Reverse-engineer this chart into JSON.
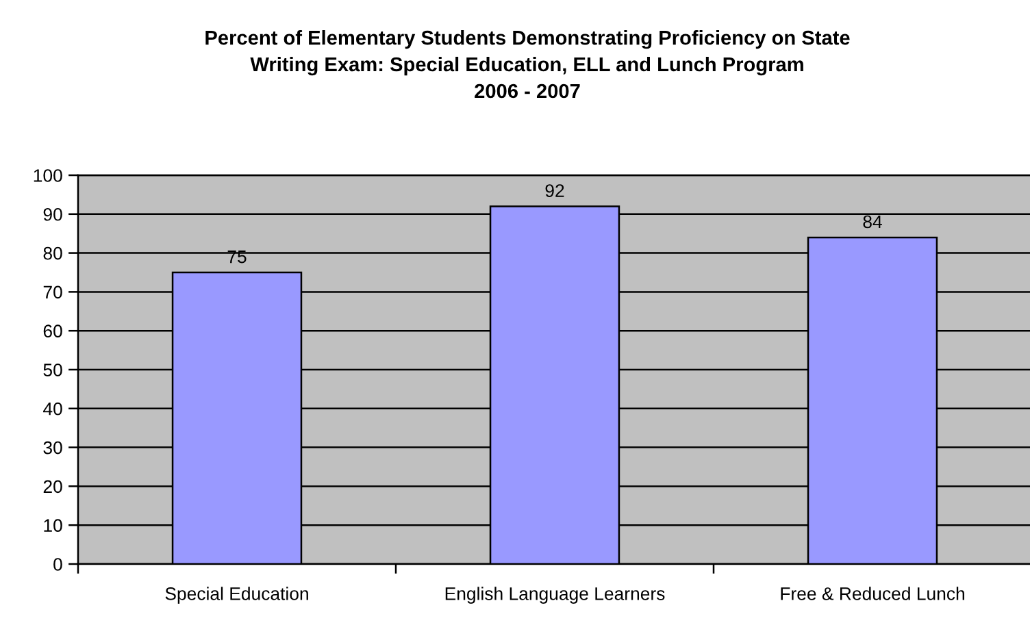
{
  "chart_data": {
    "type": "bar",
    "title": "Percent of Elementary Students Demonstrating Proficiency on State\nWriting Exam: Special Education, ELL and Lunch Program\n2006 - 2007",
    "categories": [
      "Special Education",
      "English Language Learners",
      "Free & Reduced Lunch"
    ],
    "values": [
      75,
      92,
      84
    ],
    "color": "#9999ff",
    "ylim": [
      0,
      100
    ],
    "yticks": [
      0,
      10,
      20,
      30,
      40,
      50,
      60,
      70,
      80,
      90,
      100
    ],
    "grid": "y",
    "data_labels": true
  }
}
